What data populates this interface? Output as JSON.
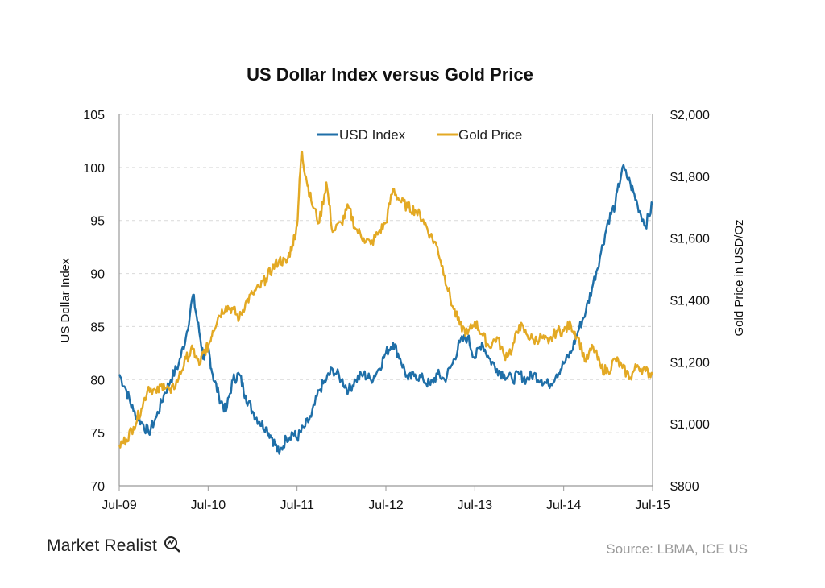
{
  "chart_data": {
    "type": "line",
    "title": "US Dollar Index versus Gold Price",
    "ylabel_left": "US Dollar Index",
    "ylabel_right": "Gold Price in USD/Oz",
    "ylim_left": [
      70,
      105
    ],
    "ylim_right": [
      800,
      2000
    ],
    "yticks_left": [
      "105",
      "100",
      "95",
      "90",
      "85",
      "80",
      "75",
      "70"
    ],
    "yticks_right": [
      "$2,000",
      "$1,800",
      "$1,600",
      "$1,400",
      "$1,200",
      "$1,000",
      "$800"
    ],
    "xticks": [
      "Jul-09",
      "Jul-10",
      "Jul-11",
      "Jul-12",
      "Jul-13",
      "Jul-14",
      "Jul-15"
    ],
    "grid": true,
    "legend_position": "top-center",
    "series": [
      {
        "name": "USD Index",
        "axis": "left",
        "color": "#1f6fa8",
        "x": [
          0,
          0.08,
          0.16,
          0.25,
          0.33,
          0.42,
          0.5,
          0.58,
          0.67,
          0.75,
          0.83,
          0.9,
          0.95,
          1.0,
          1.05,
          1.12,
          1.2,
          1.28,
          1.35,
          1.42,
          1.5,
          1.58,
          1.65,
          1.72,
          1.8,
          1.88,
          1.95,
          2.0,
          2.08,
          2.16,
          2.25,
          2.33,
          2.4,
          2.5,
          2.58,
          2.66,
          2.75,
          2.83,
          2.92,
          3.0,
          3.08,
          3.16,
          3.25,
          3.33,
          3.42,
          3.5,
          3.58,
          3.66,
          3.75,
          3.83,
          3.92,
          4.0,
          4.08,
          4.16,
          4.25,
          4.33,
          4.42,
          4.5,
          4.58,
          4.66,
          4.75,
          4.83,
          4.92,
          5.0,
          5.08,
          5.16,
          5.25,
          5.33,
          5.42,
          5.5,
          5.58,
          5.66,
          5.75,
          5.83,
          5.92,
          6.0
        ],
        "values": [
          80.5,
          79.0,
          77.0,
          76.0,
          75.0,
          76.5,
          78.5,
          80.0,
          81.5,
          84.0,
          88.0,
          84.5,
          82.0,
          83.0,
          80.5,
          78.5,
          77.0,
          80.0,
          80.5,
          78.5,
          77.0,
          76.0,
          75.5,
          74.5,
          73.0,
          74.5,
          75.0,
          74.5,
          75.5,
          76.5,
          79.0,
          80.0,
          81.0,
          80.0,
          79.0,
          80.0,
          80.5,
          80.0,
          81.0,
          82.5,
          83.5,
          82.0,
          80.0,
          80.5,
          80.0,
          79.5,
          80.5,
          80.0,
          81.5,
          83.5,
          84.0,
          82.0,
          83.5,
          82.0,
          81.0,
          80.5,
          80.0,
          80.5,
          80.0,
          80.5,
          80.0,
          79.5,
          80.5,
          81.5,
          82.5,
          84.5,
          86.5,
          89.0,
          92.0,
          95.0,
          96.5,
          100.0,
          98.5,
          96.5,
          94.5,
          96.5
        ]
      },
      {
        "name": "Gold Price",
        "axis": "right",
        "color": "#e3a924",
        "x": [
          0,
          0.08,
          0.16,
          0.25,
          0.33,
          0.42,
          0.5,
          0.58,
          0.67,
          0.75,
          0.83,
          0.9,
          0.95,
          1.0,
          1.05,
          1.12,
          1.2,
          1.28,
          1.35,
          1.42,
          1.5,
          1.58,
          1.65,
          1.72,
          1.8,
          1.88,
          1.95,
          2.0,
          2.05,
          2.1,
          2.16,
          2.25,
          2.33,
          2.4,
          2.5,
          2.58,
          2.66,
          2.75,
          2.83,
          2.92,
          3.0,
          3.08,
          3.16,
          3.25,
          3.33,
          3.42,
          3.5,
          3.58,
          3.66,
          3.75,
          3.83,
          3.92,
          4.0,
          4.08,
          4.16,
          4.25,
          4.33,
          4.42,
          4.5,
          4.58,
          4.66,
          4.75,
          4.83,
          4.92,
          5.0,
          5.08,
          5.16,
          5.25,
          5.33,
          5.42,
          5.5,
          5.58,
          5.66,
          5.75,
          5.83,
          5.92,
          6.0
        ],
        "values": [
          930,
          950,
          990,
          1050,
          1120,
          1100,
          1130,
          1100,
          1150,
          1210,
          1240,
          1190,
          1230,
          1250,
          1300,
          1350,
          1380,
          1370,
          1340,
          1390,
          1420,
          1440,
          1470,
          1500,
          1530,
          1520,
          1580,
          1640,
          1880,
          1800,
          1720,
          1650,
          1780,
          1620,
          1650,
          1700,
          1630,
          1600,
          1580,
          1620,
          1650,
          1760,
          1720,
          1700,
          1690,
          1660,
          1610,
          1570,
          1480,
          1380,
          1320,
          1290,
          1330,
          1290,
          1250,
          1280,
          1220,
          1240,
          1320,
          1290,
          1270,
          1280,
          1260,
          1300,
          1300,
          1320,
          1280,
          1200,
          1250,
          1180,
          1170,
          1210,
          1180,
          1150,
          1190,
          1170,
          1160
        ]
      }
    ]
  },
  "footer": {
    "brand": "Market Realist",
    "source": "Source: LBMA, ICE US"
  }
}
